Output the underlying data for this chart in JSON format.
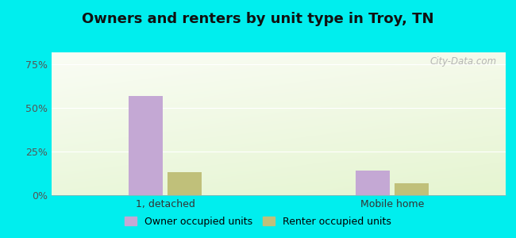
{
  "title": "Owners and renters by unit type in Troy, TN",
  "categories": [
    "1, detached",
    "Mobile home"
  ],
  "owner_values": [
    57.0,
    14.0
  ],
  "renter_values": [
    13.0,
    7.0
  ],
  "owner_color": "#c4a8d4",
  "renter_color": "#c0c07a",
  "yticks": [
    0,
    25,
    50,
    75
  ],
  "ytick_labels": [
    "0%",
    "25%",
    "50%",
    "75%"
  ],
  "ylim": [
    0,
    82
  ],
  "bg_outer": "#00eeee",
  "title_fontsize": 13,
  "legend_labels": [
    "Owner occupied units",
    "Renter occupied units"
  ],
  "watermark": "City-Data.com",
  "bar_width": 0.3,
  "x_positions": [
    1.0,
    3.0
  ],
  "xlim": [
    0,
    4.0
  ]
}
